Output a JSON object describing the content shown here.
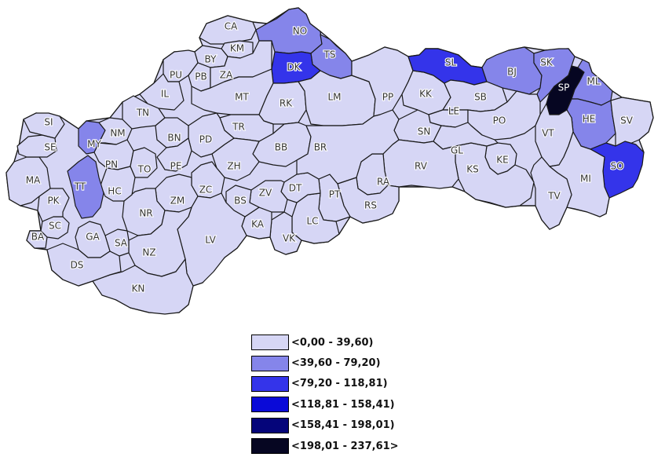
{
  "colors": {
    "class1": "#d6d6f5",
    "class2": "#8585ea",
    "class3": "#3434ea",
    "class4": "#0a0ad8",
    "class5": "#05057a",
    "class6": "#060622",
    "border": "#1a1a1a"
  },
  "legend": {
    "items": [
      {
        "label": "<0,00 - 39,60)",
        "color": "#d6d6f5"
      },
      {
        "label": "<39,60 - 79,20)",
        "color": "#8585ea"
      },
      {
        "label": "<79,20 - 118,81)",
        "color": "#3434ea"
      },
      {
        "label": "<118,81 - 158,41)",
        "color": "#0a0ad8"
      },
      {
        "label": "<158,41 - 198,01)",
        "color": "#05057a"
      },
      {
        "label": "<198,01 - 237,61>",
        "color": "#060622"
      }
    ]
  },
  "districts": [
    {
      "code": "CA",
      "class": 1
    },
    {
      "code": "NO",
      "class": 2
    },
    {
      "code": "KM",
      "class": 1
    },
    {
      "code": "TS",
      "class": 2
    },
    {
      "code": "DK",
      "class": 3
    },
    {
      "code": "BY",
      "class": 1
    },
    {
      "code": "PU",
      "class": 1
    },
    {
      "code": "PB",
      "class": 1
    },
    {
      "code": "ZA",
      "class": 1
    },
    {
      "code": "IL",
      "class": 1
    },
    {
      "code": "MT",
      "class": 1
    },
    {
      "code": "RK",
      "class": 1
    },
    {
      "code": "LM",
      "class": 1
    },
    {
      "code": "PP",
      "class": 1
    },
    {
      "code": "KK",
      "class": 1
    },
    {
      "code": "SL",
      "class": 3
    },
    {
      "code": "BJ",
      "class": 2
    },
    {
      "code": "SK",
      "class": 2
    },
    {
      "code": "SP",
      "class": 6
    },
    {
      "code": "ML",
      "class": 2
    },
    {
      "code": "HE",
      "class": 2
    },
    {
      "code": "SV",
      "class": 1
    },
    {
      "code": "SB",
      "class": 1
    },
    {
      "code": "LE",
      "class": 1
    },
    {
      "code": "PO",
      "class": 1
    },
    {
      "code": "VT",
      "class": 1
    },
    {
      "code": "SO",
      "class": 3
    },
    {
      "code": "MI",
      "class": 1
    },
    {
      "code": "TV",
      "class": 1
    },
    {
      "code": "KE",
      "class": 1
    },
    {
      "code": "KS",
      "class": 1
    },
    {
      "code": "GL",
      "class": 1
    },
    {
      "code": "SN",
      "class": 1
    },
    {
      "code": "RV",
      "class": 1
    },
    {
      "code": "RA",
      "class": 1
    },
    {
      "code": "RS",
      "class": 1
    },
    {
      "code": "PT",
      "class": 1
    },
    {
      "code": "LC",
      "class": 1
    },
    {
      "code": "DT",
      "class": 1
    },
    {
      "code": "VK",
      "class": 1
    },
    {
      "code": "KA",
      "class": 1
    },
    {
      "code": "ZV",
      "class": 1
    },
    {
      "code": "BS",
      "class": 1
    },
    {
      "code": "BB",
      "class": 1
    },
    {
      "code": "BR",
      "class": 1
    },
    {
      "code": "TR",
      "class": 1
    },
    {
      "code": "ZH",
      "class": 1
    },
    {
      "code": "PD",
      "class": 1
    },
    {
      "code": "BN",
      "class": 1
    },
    {
      "code": "PE",
      "class": 1
    },
    {
      "code": "ZC",
      "class": 1
    },
    {
      "code": "ZM",
      "class": 1
    },
    {
      "code": "NR",
      "class": 1
    },
    {
      "code": "LV",
      "class": 1
    },
    {
      "code": "NZ",
      "class": 1
    },
    {
      "code": "KN",
      "class": 1
    },
    {
      "code": "SA",
      "class": 1
    },
    {
      "code": "GA",
      "class": 1
    },
    {
      "code": "DS",
      "class": 1
    },
    {
      "code": "SC",
      "class": 1
    },
    {
      "code": "BA",
      "class": 1
    },
    {
      "code": "PK",
      "class": 1
    },
    {
      "code": "MA",
      "class": 1
    },
    {
      "code": "SE",
      "class": 1
    },
    {
      "code": "SI",
      "class": 1
    },
    {
      "code": "MY",
      "class": 2
    },
    {
      "code": "NM",
      "class": 1
    },
    {
      "code": "TN",
      "class": 1
    },
    {
      "code": "PN",
      "class": 1
    },
    {
      "code": "TO",
      "class": 1
    },
    {
      "code": "HC",
      "class": 1
    },
    {
      "code": "TT",
      "class": 2
    }
  ]
}
